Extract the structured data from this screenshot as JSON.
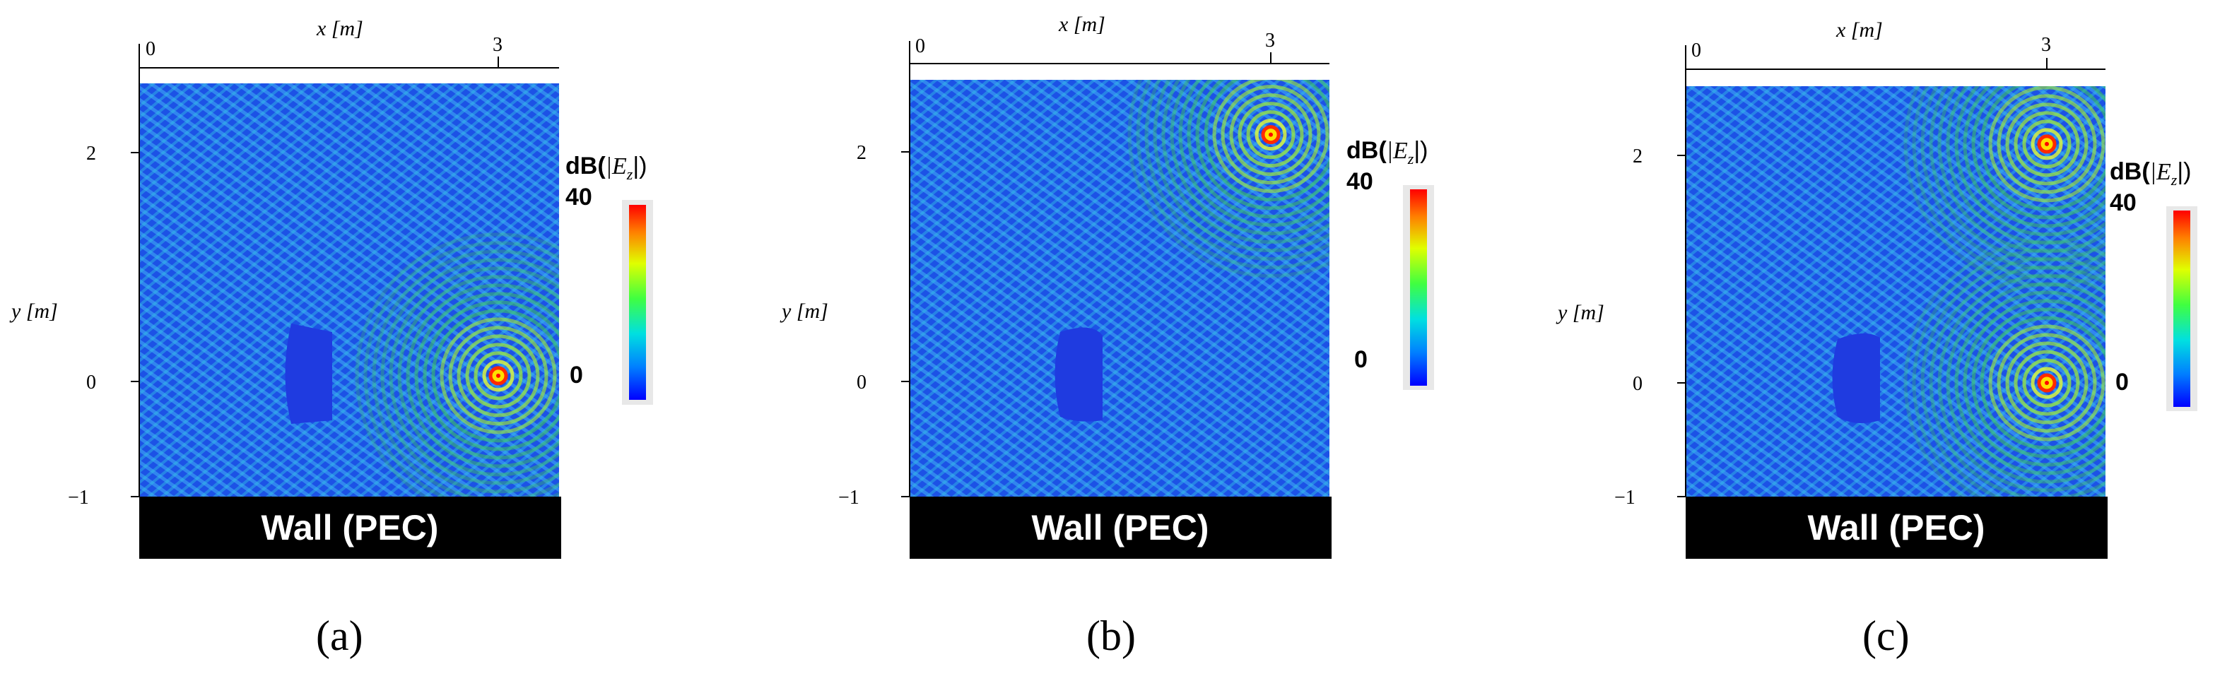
{
  "panels": [
    {
      "id": "a",
      "caption": "(a)",
      "x_axis_label": "x [m]",
      "y_axis_label": "y [m]",
      "x_ticks": [
        "0",
        "3"
      ],
      "y_ticks": [
        "2",
        "0",
        "−1"
      ],
      "wall_label": "Wall (PEC)",
      "colorbar": {
        "title_prefix": "dB(",
        "title_var": "|E",
        "title_sub": "z",
        "title_suffix": "|)",
        "max_label": "40",
        "min_label": "0"
      },
      "sources": [
        {
          "x": 3.0,
          "y": 0.05
        }
      ]
    },
    {
      "id": "b",
      "caption": "(b)",
      "x_axis_label": "x [m]",
      "y_axis_label": "y [m]",
      "x_ticks": [
        "0",
        "3"
      ],
      "y_ticks": [
        "2",
        "0",
        "−1"
      ],
      "wall_label": "Wall (PEC)",
      "colorbar": {
        "title_prefix": "dB(",
        "title_var": "|E",
        "title_sub": "z",
        "title_suffix": "|)",
        "max_label": "40",
        "min_label": "0"
      },
      "sources": [
        {
          "x": 3.0,
          "y": 2.15
        }
      ]
    },
    {
      "id": "c",
      "caption": "(c)",
      "x_axis_label": "x [m]",
      "y_axis_label": "y [m]",
      "x_ticks": [
        "0",
        "3"
      ],
      "y_ticks": [
        "2",
        "0",
        "−1"
      ],
      "wall_label": "Wall (PEC)",
      "colorbar": {
        "title_prefix": "dB(",
        "title_var": "|E",
        "title_sub": "z",
        "title_suffix": "|)",
        "max_label": "40",
        "min_label": "0"
      },
      "sources": [
        {
          "x": 3.0,
          "y": 2.1
        },
        {
          "x": 3.0,
          "y": 0.0
        }
      ]
    }
  ],
  "colors": {
    "field_low": "#1540e0",
    "field_mid": "#1a9cf0",
    "field_green": "#3ec85a",
    "source_ring": "#ff2a00",
    "wall": "#000000",
    "colorbar_stops": [
      "#0000ff",
      "#0080ff",
      "#00e0e0",
      "#40ff40",
      "#e0ff00",
      "#ff8000",
      "#ff0000"
    ]
  }
}
